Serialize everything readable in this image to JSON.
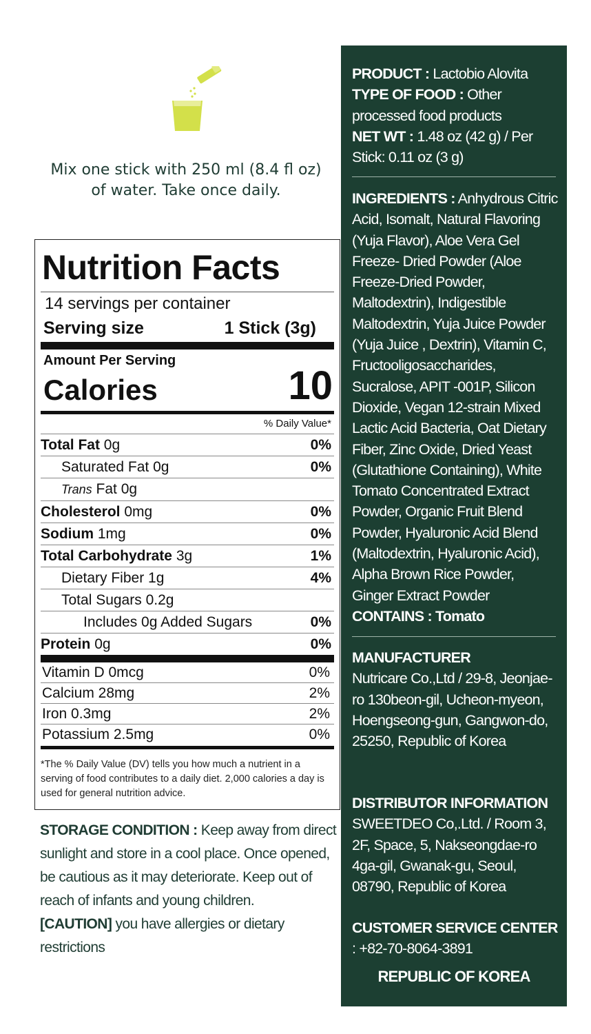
{
  "directions": {
    "line1": "Mix one stick with 250 ml (8.4 fl oz)",
    "line2": "of water. Take once daily."
  },
  "nutrition": {
    "title": "Nutrition Facts",
    "servings": "14 servings per container",
    "serving_size_label": "Serving size",
    "serving_size_value": "1 Stick (3g)",
    "amount_per_serving": "Amount Per Serving",
    "calories_label": "Calories",
    "calories_value": "10",
    "dv_header": "% Daily Value*",
    "rows": [
      {
        "label": "Total Fat",
        "amount": "0g",
        "pct": "0%"
      },
      {
        "label": "Saturated Fat",
        "amount": "0g",
        "pct": "0%"
      },
      {
        "label": "Trans",
        "amount": "Fat 0g",
        "pct": ""
      },
      {
        "label": "Cholesterol",
        "amount": "0mg",
        "pct": "0%"
      },
      {
        "label": "Sodium",
        "amount": "1mg",
        "pct": "0%"
      },
      {
        "label": "Total Carbohydrate",
        "amount": "3g",
        "pct": "1%"
      },
      {
        "label": "Dietary Fiber",
        "amount": "1g",
        "pct": "4%"
      },
      {
        "label": "Total Sugars",
        "amount": "0.2g",
        "pct": ""
      },
      {
        "label": "Includes 0g Added Sugars",
        "amount": "",
        "pct": "0%"
      },
      {
        "label": "Protein",
        "amount": "0g",
        "pct": "0%"
      }
    ],
    "vitamins": [
      {
        "label": "Vitamin D 0mcg",
        "pct": "0%"
      },
      {
        "label": "Calcium 28mg",
        "pct": "2%"
      },
      {
        "label": "Iron 0.3mg",
        "pct": "2%"
      },
      {
        "label": "Potassium 2.5mg",
        "pct": "0%"
      }
    ],
    "footnote": "*The % Daily Value (DV) tells you how much a nutrient in a serving of food contributes to a daily diet. 2,000 calories a day is used for general nutrition advice."
  },
  "storage": {
    "label": "STORAGE CONDITION :",
    "text": " Keep away from direct sunlight and store in a cool place. Once opened, be cautious as it may deteriorate. Keep out of reach of infants and young children.",
    "caution_label": "[CAUTION]",
    "caution_text": " you have allergies or dietary restrictions"
  },
  "product": {
    "product_label": "PRODUCT :",
    "product_value": " Lactobio Alovita",
    "type_label": "TYPE OF FOOD :",
    "type_value": " Other processed food products",
    "netwt_label": "NET WT :",
    "netwt_value": " 1.48 oz (42 g) / Per Stick: 0.11 oz (3 g)"
  },
  "ingredients": {
    "label": "INGREDIENTS :",
    "text": " Anhydrous Citric Acid, Isomalt, Natural Flavoring (Yuja Flavor), Aloe Vera Gel Freeze- Dried Powder  (Aloe Freeze-Dried Powder, Maltodextrin), Indigestible Maltodextrin, Yuja Juice Powder (Yuja Juice , Dextrin), Vitamin C, Fructooligosaccharides, Sucralose, APIT -001P, Silicon Dioxide, Vegan 12-strain Mixed Lactic Acid Bacteria, Oat Dietary Fiber, Zinc Oxide, Dried Yeast (Glutathione Containing), White Tomato Concentrated Extract Powder, Organic Fruit Blend Powder, Hyaluronic Acid Blend (Maltodextrin, Hyaluronic Acid), Alpha Brown Rice Powder, Ginger Extract Powder",
    "contains_label": "CONTAINS :",
    "contains_value": " Tomato"
  },
  "manufacturer": {
    "title": "MANUFACTURER",
    "text": "Nutricare Co.,Ltd / 29-8, Jeonjae-ro 130beon-gil, Ucheon-myeon, Hoengseong-gun, Gangwon-do, 25250, Republic of Korea"
  },
  "distributor": {
    "title": "DISTRIBUTOR INFORMATION",
    "text": "SWEETDEO Co,.Ltd. /  Room 3, 2F, Space, 5, Nakseongdae-ro 4ga-gil, Gwanak-gu, Seoul, 08790, Republic of Korea"
  },
  "customer_service": {
    "title": "CUSTOMER SERVICE CENTER",
    "phone": ": +82-70-8064-3891"
  },
  "country": "REPUBLIC OF KOREA",
  "colors": {
    "panel_bg": "#1c3f32",
    "accent_green": "#1f3c33",
    "icon_yellow": "#d3e04a"
  }
}
